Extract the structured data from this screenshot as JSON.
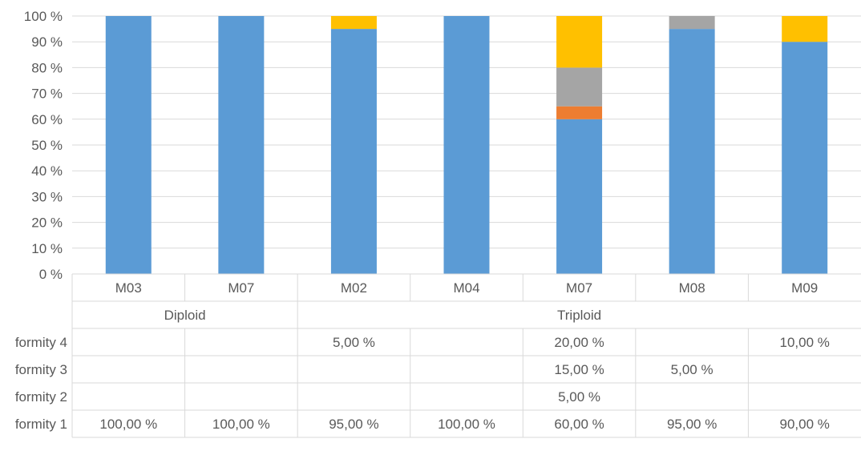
{
  "chart_data": {
    "type": "bar",
    "stacked": true,
    "percent_stacked": true,
    "title": "",
    "xlabel": "",
    "ylabel": "",
    "ylim": [
      0,
      100
    ],
    "y_ticks": [
      "0 %",
      "10 %",
      "20 %",
      "30 %",
      "40 %",
      "50 %",
      "60 %",
      "70 %",
      "80 %",
      "90 %",
      "100 %"
    ],
    "grid": true,
    "categories": [
      "M03",
      "M07",
      "M02",
      "M04",
      "M07",
      "M08",
      "M09"
    ],
    "groups": [
      {
        "label": "Diploid",
        "span": 2
      },
      {
        "label": "Triploid",
        "span": 5
      }
    ],
    "series": [
      {
        "name": "formity 1",
        "color": "#5B9BD5",
        "values": [
          100,
          100,
          95,
          100,
          60,
          95,
          90
        ],
        "labels": [
          "100,00 %",
          "100,00 %",
          "95,00 %",
          "100,00 %",
          "60,00 %",
          "95,00 %",
          "90,00 %"
        ]
      },
      {
        "name": "formity 2",
        "color": "#ED7D31",
        "values": [
          0,
          0,
          0,
          0,
          5,
          0,
          0
        ],
        "labels": [
          "",
          "",
          "",
          "",
          "5,00 %",
          "",
          ""
        ]
      },
      {
        "name": "formity 3",
        "color": "#A5A5A5",
        "values": [
          0,
          0,
          0,
          0,
          15,
          5,
          0
        ],
        "labels": [
          "",
          "",
          "",
          "",
          "15,00 %",
          "5,00 %",
          ""
        ]
      },
      {
        "name": "formity 4",
        "color": "#FFC000",
        "values": [
          0,
          0,
          5,
          0,
          20,
          0,
          10
        ],
        "labels": [
          "",
          "",
          "5,00 %",
          "",
          "20,00 %",
          "",
          "10,00 %"
        ]
      }
    ]
  }
}
